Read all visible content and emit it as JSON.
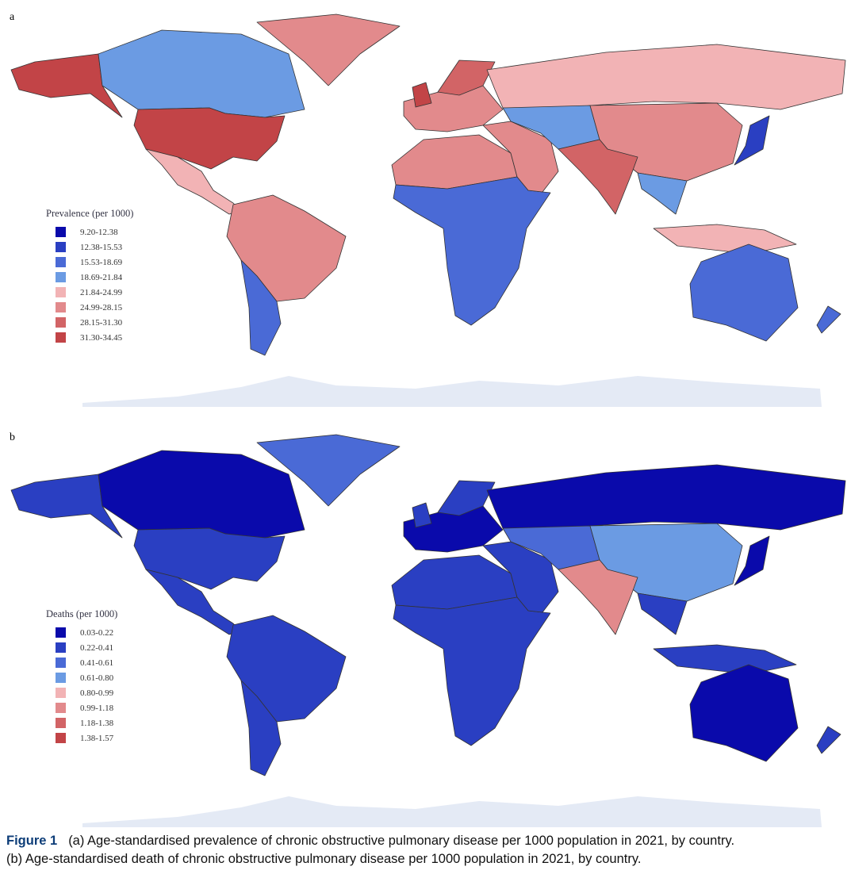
{
  "colors": [
    "#0a0aab",
    "#2a3fc2",
    "#4a6ad6",
    "#6b9be3",
    "#f2b3b5",
    "#e28a8c",
    "#d26466",
    "#c24447"
  ],
  "antarctica_color": "#e4eaf5",
  "border_color": "#333333",
  "panels": [
    {
      "label": "a",
      "legend_title": "Prevalence (per 1000)",
      "bins": [
        "9.20-12.38",
        "12.38-15.53",
        "15.53-18.69",
        "18.69-21.84",
        "21.84-24.99",
        "24.99-28.15",
        "28.15-31.30",
        "31.30-34.45"
      ],
      "regions": {
        "alaska": 7,
        "canada": 3,
        "greenland": 5,
        "usa": 7,
        "central-america": 4,
        "south-america": 5,
        "southern-cone": 2,
        "europe": 5,
        "scandinavia": 6,
        "uk": 7,
        "russia": 4,
        "north-africa": 5,
        "africa": 2,
        "middle-east": 5,
        "central-asia": 3,
        "china": 5,
        "india": 6,
        "southeast-asia": 3,
        "indonesia": 4,
        "japan": 1,
        "australia": 2,
        "new-zealand": 2
      }
    },
    {
      "label": "b",
      "legend_title": "Deaths (per 1000)",
      "bins": [
        "0.03-0.22",
        "0.22-0.41",
        "0.41-0.61",
        "0.61-0.80",
        "0.80-0.99",
        "0.99-1.18",
        "1.18-1.38",
        "1.38-1.57"
      ],
      "regions": {
        "alaska": 1,
        "canada": 0,
        "greenland": 2,
        "usa": 1,
        "central-america": 1,
        "south-america": 1,
        "southern-cone": 1,
        "europe": 0,
        "scandinavia": 1,
        "uk": 1,
        "russia": 0,
        "north-africa": 1,
        "africa": 1,
        "middle-east": 1,
        "central-asia": 2,
        "china": 3,
        "india": 5,
        "southeast-asia": 1,
        "indonesia": 1,
        "japan": 0,
        "australia": 0,
        "new-zealand": 1
      }
    }
  ],
  "caption": {
    "figure": "Figure 1",
    "line1": "(a) Age-standardised prevalence of chronic obstructive pulmonary disease per 1000 population in 2021, by country.",
    "line2": "(b) Age-standardised death of chronic obstructive pulmonary disease per 1000 population in 2021, by country."
  }
}
